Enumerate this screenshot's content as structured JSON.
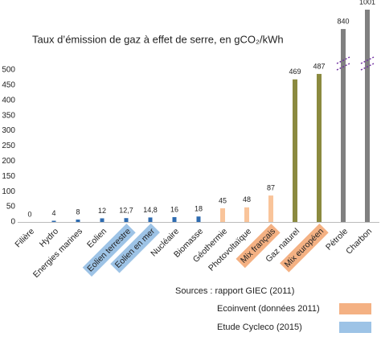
{
  "chart_data": {
    "type": "bar",
    "title": "Taux d’émission de gaz à effet de serre, en gCO₂/kWh",
    "categories": [
      "Filière",
      "Hydro",
      "Energies marines",
      "Eolien",
      "Eolien terrestre",
      "Eolien en mer",
      "Nucléaire",
      "Biomasse",
      "Géothermie",
      "Photovoltaïque",
      "Mix français",
      "Gaz naturel",
      "Mix européen",
      "Pétrole",
      "Charbon"
    ],
    "values": [
      0,
      4,
      8,
      12,
      12.7,
      14.8,
      16,
      18,
      45,
      48,
      87,
      469,
      487,
      840,
      1001
    ],
    "value_labels": [
      "0",
      "4",
      "8",
      "12",
      "12,7",
      "14,8",
      "16",
      "18",
      "45",
      "48",
      "87",
      "469",
      "487",
      "840",
      "1001"
    ],
    "bar_colors": [
      "#2e6bb0",
      "#2e6bb0",
      "#2e6bb0",
      "#2e6bb0",
      "#2e6bb0",
      "#2e6bb0",
      "#2e6bb0",
      "#2e6bb0",
      "#f9c49a",
      "#f9c49a",
      "#f9c49a",
      "#8b8a3f",
      "#8b8a3f",
      "#808080",
      "#808080"
    ],
    "label_highlights": [
      null,
      null,
      null,
      null,
      "#9dc3e6",
      "#9dc3e6",
      null,
      null,
      null,
      null,
      "#f4b183",
      null,
      "#f4b183",
      null,
      null
    ],
    "ylim": [
      0,
      500
    ],
    "yticks": [
      0,
      50,
      100,
      150,
      200,
      250,
      300,
      350,
      400,
      450,
      500
    ],
    "axis_break": true,
    "grid": false,
    "source": "Sources : rapport GIEC (2011)",
    "legend": [
      {
        "label": "Ecoinvent  (données 2011)",
        "color": "#f4b183"
      },
      {
        "label": "Etude Cycleco (2015)",
        "color": "#9dc3e6"
      }
    ]
  }
}
